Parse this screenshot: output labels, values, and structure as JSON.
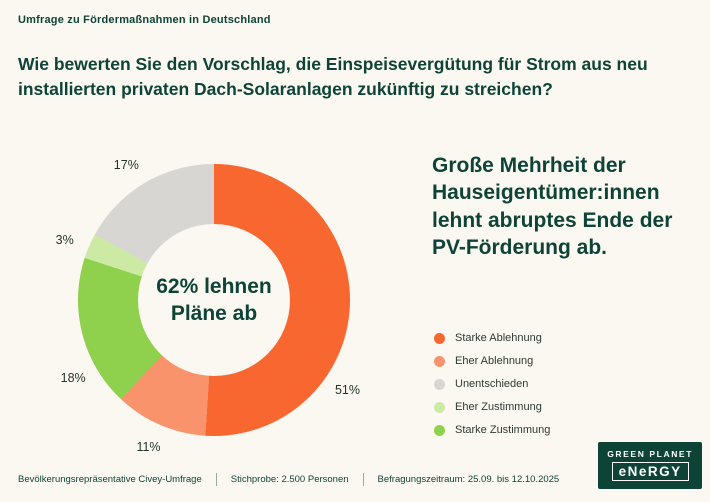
{
  "page": {
    "kicker": "Umfrage zu Fördermaßnahmen in Deutschland",
    "question": "Wie bewerten Sie den Vorschlag, die Einspeisevergütung für Strom aus neu installierten privaten Dach-Solaranlagen zukünftig zu streichen?",
    "statement": "Große Mehrheit der Hauseigentümer:innen lehnt abruptes Ende der PV-Förderung ab."
  },
  "chart_data": {
    "type": "pie",
    "donut": true,
    "title": "",
    "categories": [
      "Starke Ablehnung",
      "Eher Ablehnung",
      "Unentschieden",
      "Eher Zustimmung",
      "Starke Zustimmung"
    ],
    "values": [
      51,
      11,
      17,
      3,
      18
    ],
    "unit": "%",
    "segments": [
      {
        "label": "Starke Ablehnung",
        "pct": 51,
        "color": "#f8672f",
        "label_angle": 124
      },
      {
        "label": "Eher Ablehnung",
        "pct": 11,
        "color": "#f8936c",
        "label_angle": 204
      },
      {
        "label": "Starke Zustimmung",
        "pct": 18,
        "color": "#8fd04c",
        "label_angle": 241
      },
      {
        "label": "Eher Zustimmung",
        "pct": 3,
        "color": "#cdeaa5",
        "label_angle": 292
      },
      {
        "label": "Unentschieden",
        "pct": 17,
        "color": "#d7d6d3",
        "label_angle": 327
      }
    ],
    "center": {
      "line1": "62% lehnen",
      "line2": "Pläne ab"
    },
    "legend_position": "right"
  },
  "legend": {
    "items": [
      {
        "label": "Starke Ablehnung",
        "color": "#f8672f"
      },
      {
        "label": "Eher Ablehnung",
        "color": "#f8936c"
      },
      {
        "label": "Unentschieden",
        "color": "#d7d6d3"
      },
      {
        "label": "Eher Zustimmung",
        "color": "#cdeaa5"
      },
      {
        "label": "Starke Zustimmung",
        "color": "#8fd04c"
      }
    ]
  },
  "logo": {
    "line1": "GREEN PLANET",
    "line2": "eNeRGY"
  },
  "footer": {
    "items": [
      "Bevölkerungsrepräsentative Civey-Umfrage",
      "Stichprobe: 2.500 Personen",
      "Befragungszeitraum: 25.09. bis 12.10.2025"
    ]
  },
  "colors": {
    "background": "#fbf7f1",
    "dark_green": "#0e4437",
    "strong_rejection": "#f8672f",
    "rejection": "#f8936c",
    "undecided": "#d7d6d3",
    "approval": "#cdeaa5",
    "strong_approval": "#8fd04c"
  }
}
